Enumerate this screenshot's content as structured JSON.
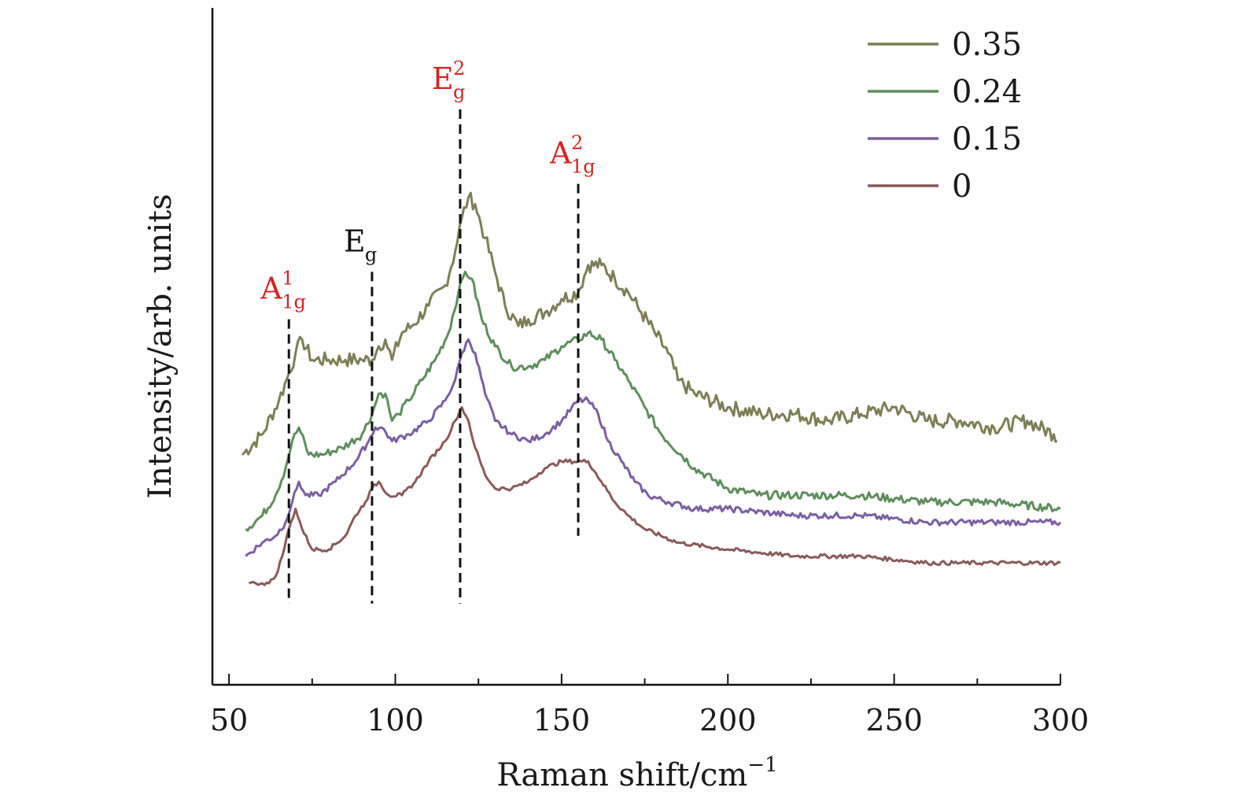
{
  "chart_data": {
    "type": "line",
    "title": "",
    "xlabel_main": "Raman shift/cm",
    "xlabel_sup": "−1",
    "ylabel": "Intensity/arb. units",
    "xlim": [
      45,
      300
    ],
    "ylim": [
      0,
      1
    ],
    "xticks": [
      50,
      100,
      150,
      200,
      250,
      300
    ],
    "yticks_shown": false,
    "legend_position": "top-right",
    "colors": {
      "0.35": "#7c7f55",
      "0.24": "#5e8e5c",
      "0.15": "#7a5fa2",
      "0": "#8a5a5a",
      "peak_label_red": "#d42424",
      "peak_label_black": "#111111"
    },
    "series": [
      {
        "name": "0.35",
        "x": [
          54,
          60,
          65,
          68,
          70,
          72,
          75,
          80,
          85,
          90,
          93,
          95,
          97,
          99,
          102,
          105,
          110,
          115,
          118,
          120,
          122,
          124,
          127,
          130,
          133,
          137,
          140,
          145,
          150,
          155,
          158,
          162,
          166,
          170,
          174,
          178,
          182,
          185,
          190,
          200,
          210,
          220,
          230,
          240,
          250,
          260,
          270,
          280,
          290,
          298,
          299
        ],
        "y": [
          0.34,
          0.37,
          0.42,
          0.46,
          0.49,
          0.51,
          0.48,
          0.48,
          0.48,
          0.48,
          0.48,
          0.5,
          0.51,
          0.48,
          0.52,
          0.53,
          0.56,
          0.59,
          0.64,
          0.69,
          0.72,
          0.71,
          0.66,
          0.61,
          0.56,
          0.53,
          0.54,
          0.55,
          0.57,
          0.58,
          0.62,
          0.62,
          0.6,
          0.58,
          0.55,
          0.52,
          0.49,
          0.45,
          0.43,
          0.41,
          0.4,
          0.4,
          0.39,
          0.4,
          0.41,
          0.39,
          0.39,
          0.38,
          0.39,
          0.37,
          0.36
        ]
      },
      {
        "name": "0.24",
        "x": [
          55,
          60,
          64,
          67,
          69,
          71,
          74,
          78,
          84,
          90,
          93,
          95,
          97,
          99,
          101,
          104,
          108,
          112,
          116,
          119,
          121,
          123,
          126,
          130,
          135,
          140,
          145,
          150,
          155,
          158,
          162,
          166,
          170,
          175,
          180,
          190,
          200,
          210,
          220,
          240,
          260,
          280,
          300
        ],
        "y": [
          0.23,
          0.25,
          0.28,
          0.32,
          0.36,
          0.38,
          0.34,
          0.34,
          0.35,
          0.37,
          0.4,
          0.43,
          0.43,
          0.39,
          0.4,
          0.42,
          0.45,
          0.48,
          0.52,
          0.58,
          0.61,
          0.6,
          0.54,
          0.5,
          0.47,
          0.47,
          0.48,
          0.5,
          0.51,
          0.52,
          0.51,
          0.48,
          0.45,
          0.41,
          0.37,
          0.32,
          0.29,
          0.28,
          0.28,
          0.28,
          0.27,
          0.27,
          0.26
        ]
      },
      {
        "name": "0.15",
        "x": [
          55,
          60,
          64,
          67,
          69,
          71,
          73,
          77,
          82,
          88,
          92,
          94,
          96,
          99,
          104,
          110,
          115,
          118,
          120,
          122,
          124,
          127,
          130,
          135,
          140,
          145,
          150,
          155,
          158,
          161,
          164,
          168,
          172,
          176,
          182,
          190,
          200,
          220,
          240,
          260,
          280,
          300
        ],
        "y": [
          0.19,
          0.21,
          0.22,
          0.24,
          0.27,
          0.3,
          0.28,
          0.28,
          0.3,
          0.33,
          0.36,
          0.38,
          0.38,
          0.36,
          0.37,
          0.39,
          0.42,
          0.45,
          0.49,
          0.51,
          0.49,
          0.43,
          0.39,
          0.37,
          0.36,
          0.37,
          0.39,
          0.42,
          0.42,
          0.4,
          0.36,
          0.33,
          0.3,
          0.28,
          0.27,
          0.26,
          0.26,
          0.25,
          0.25,
          0.24,
          0.24,
          0.24
        ]
      },
      {
        "name": "0",
        "x": [
          56,
          58,
          60,
          62,
          64,
          66,
          68,
          70,
          72,
          75,
          80,
          85,
          88,
          91,
          93,
          95,
          98,
          102,
          106,
          110,
          115,
          118,
          120,
          122,
          124,
          127,
          130,
          135,
          140,
          145,
          150,
          155,
          158,
          162,
          166,
          170,
          175,
          185,
          200,
          220,
          240,
          260,
          280,
          300
        ],
        "y": [
          0.15,
          0.15,
          0.15,
          0.15,
          0.16,
          0.19,
          0.23,
          0.26,
          0.23,
          0.2,
          0.2,
          0.22,
          0.25,
          0.27,
          0.29,
          0.3,
          0.28,
          0.28,
          0.3,
          0.33,
          0.36,
          0.39,
          0.41,
          0.39,
          0.35,
          0.31,
          0.29,
          0.29,
          0.3,
          0.32,
          0.33,
          0.33,
          0.33,
          0.3,
          0.27,
          0.25,
          0.23,
          0.21,
          0.2,
          0.19,
          0.19,
          0.18,
          0.18,
          0.18
        ]
      }
    ],
    "peaks": [
      {
        "x": 68,
        "main": "A",
        "sub": "1g",
        "sup": "1",
        "color": "red",
        "line_top": 0.54,
        "line_bottom": 0.12
      },
      {
        "x": 93,
        "main": "E",
        "sub": "g",
        "sup": "",
        "color": "black",
        "line_top": 0.61,
        "line_bottom": 0.12
      },
      {
        "x": 119.5,
        "main": "E",
        "sub": "g",
        "sup": "2",
        "color": "red",
        "line_top": 0.85,
        "line_bottom": 0.12
      },
      {
        "x": 155,
        "main": "A",
        "sub": "1g",
        "sup": "2",
        "color": "red",
        "line_top": 0.74,
        "line_bottom": 0.22
      }
    ]
  }
}
